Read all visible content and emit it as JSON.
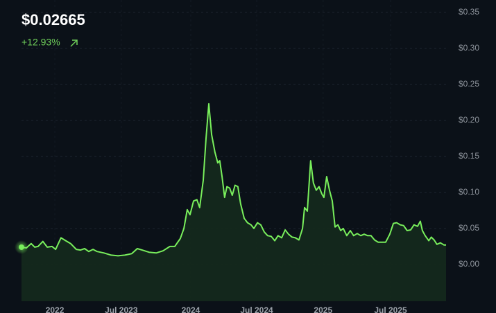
{
  "header": {
    "price": "$0.02665",
    "change": "+12.93%"
  },
  "chart_data": {
    "type": "line",
    "x": [
      0,
      1.9,
      3.8,
      5.2,
      6.5,
      8.4,
      10.1,
      12.0,
      13.4,
      15.5,
      17.4,
      19.3,
      21.5,
      23.2,
      24.8,
      26.4,
      28.1,
      29.7,
      32.4,
      35.2,
      37.9,
      40.6,
      43.3,
      45.5,
      47.4,
      50.1,
      52.9,
      55.6,
      58.3,
      60.2,
      62.4,
      63.8,
      65.1,
      66.2,
      67.6,
      68.9,
      70.0,
      71.4,
      72.5,
      73.6,
      74.7,
      76.0,
      77.1,
      77.9,
      78.8,
      79.8,
      80.7,
      81.8,
      82.8,
      83.9,
      85.0,
      86.1,
      87.5,
      88.8,
      90.2,
      91.3,
      92.7,
      94.0,
      95.4,
      96.7,
      98.1,
      99.5,
      100.8,
      102.2,
      103.6,
      104.9,
      106.3,
      107.6,
      109.0,
      110.4,
      111.2,
      112.3,
      113.6,
      114.7,
      115.8,
      116.9,
      118.0,
      118.8,
      119.9,
      121.0,
      122.1,
      123.2,
      124.3,
      125.4,
      126.4,
      127.8,
      129.2,
      130.5,
      131.9,
      133.3,
      134.6,
      136.0,
      137.3,
      138.7,
      140.1,
      141.4,
      143.1,
      144.7,
      146.1,
      147.4,
      148.8,
      150.1,
      151.5,
      152.9,
      154.2,
      155.6,
      156.7,
      157.5,
      158.6,
      160.0,
      161.0,
      162.1,
      163.2,
      164.6,
      166.0,
      166.8
    ],
    "series": [
      {
        "color": "#79ef5c",
        "values": [
          0.024,
          0.023,
          0.029,
          0.024,
          0.025,
          0.032,
          0.024,
          0.025,
          0.021,
          0.037,
          0.033,
          0.029,
          0.021,
          0.02,
          0.022,
          0.018,
          0.021,
          0.018,
          0.016,
          0.013,
          0.012,
          0.013,
          0.015,
          0.022,
          0.02,
          0.017,
          0.016,
          0.019,
          0.025,
          0.025,
          0.036,
          0.05,
          0.076,
          0.069,
          0.088,
          0.09,
          0.079,
          0.117,
          0.175,
          0.223,
          0.18,
          0.156,
          0.141,
          0.144,
          0.122,
          0.093,
          0.108,
          0.106,
          0.096,
          0.11,
          0.108,
          0.084,
          0.064,
          0.058,
          0.055,
          0.05,
          0.058,
          0.055,
          0.045,
          0.04,
          0.039,
          0.033,
          0.04,
          0.037,
          0.048,
          0.042,
          0.038,
          0.037,
          0.034,
          0.05,
          0.079,
          0.074,
          0.144,
          0.113,
          0.103,
          0.108,
          0.098,
          0.093,
          0.122,
          0.103,
          0.088,
          0.052,
          0.055,
          0.047,
          0.05,
          0.04,
          0.047,
          0.04,
          0.043,
          0.04,
          0.042,
          0.04,
          0.04,
          0.034,
          0.031,
          0.031,
          0.031,
          0.042,
          0.057,
          0.058,
          0.055,
          0.054,
          0.047,
          0.048,
          0.055,
          0.053,
          0.06,
          0.047,
          0.04,
          0.033,
          0.038,
          0.034,
          0.028,
          0.03,
          0.027,
          0.027
        ]
      }
    ],
    "xlim": [
      0,
      166.8
    ],
    "xticks": [
      {
        "value": 13.1,
        "label": "2022"
      },
      {
        "value": 39.2,
        "label": "Jul 2023"
      },
      {
        "value": 66.5,
        "label": "2024"
      },
      {
        "value": 92.4,
        "label": "Jul 2024"
      },
      {
        "value": 118.5,
        "label": "2025"
      },
      {
        "value": 145.0,
        "label": "Jul 2025"
      }
    ],
    "ylim": [
      -0.051,
      0.367
    ],
    "yticks": [
      {
        "value": 0,
        "label": "$0.00"
      },
      {
        "value": 0.05,
        "label": "$0.05"
      },
      {
        "value": 0.1,
        "label": "$0.10"
      },
      {
        "value": 0.15,
        "label": "$0.15"
      },
      {
        "value": 0.2,
        "label": "$0.20"
      },
      {
        "value": 0.25,
        "label": "$0.25"
      },
      {
        "value": 0.3,
        "label": "$0.30"
      },
      {
        "value": 0.35,
        "label": "$0.35"
      }
    ],
    "grid": true
  }
}
